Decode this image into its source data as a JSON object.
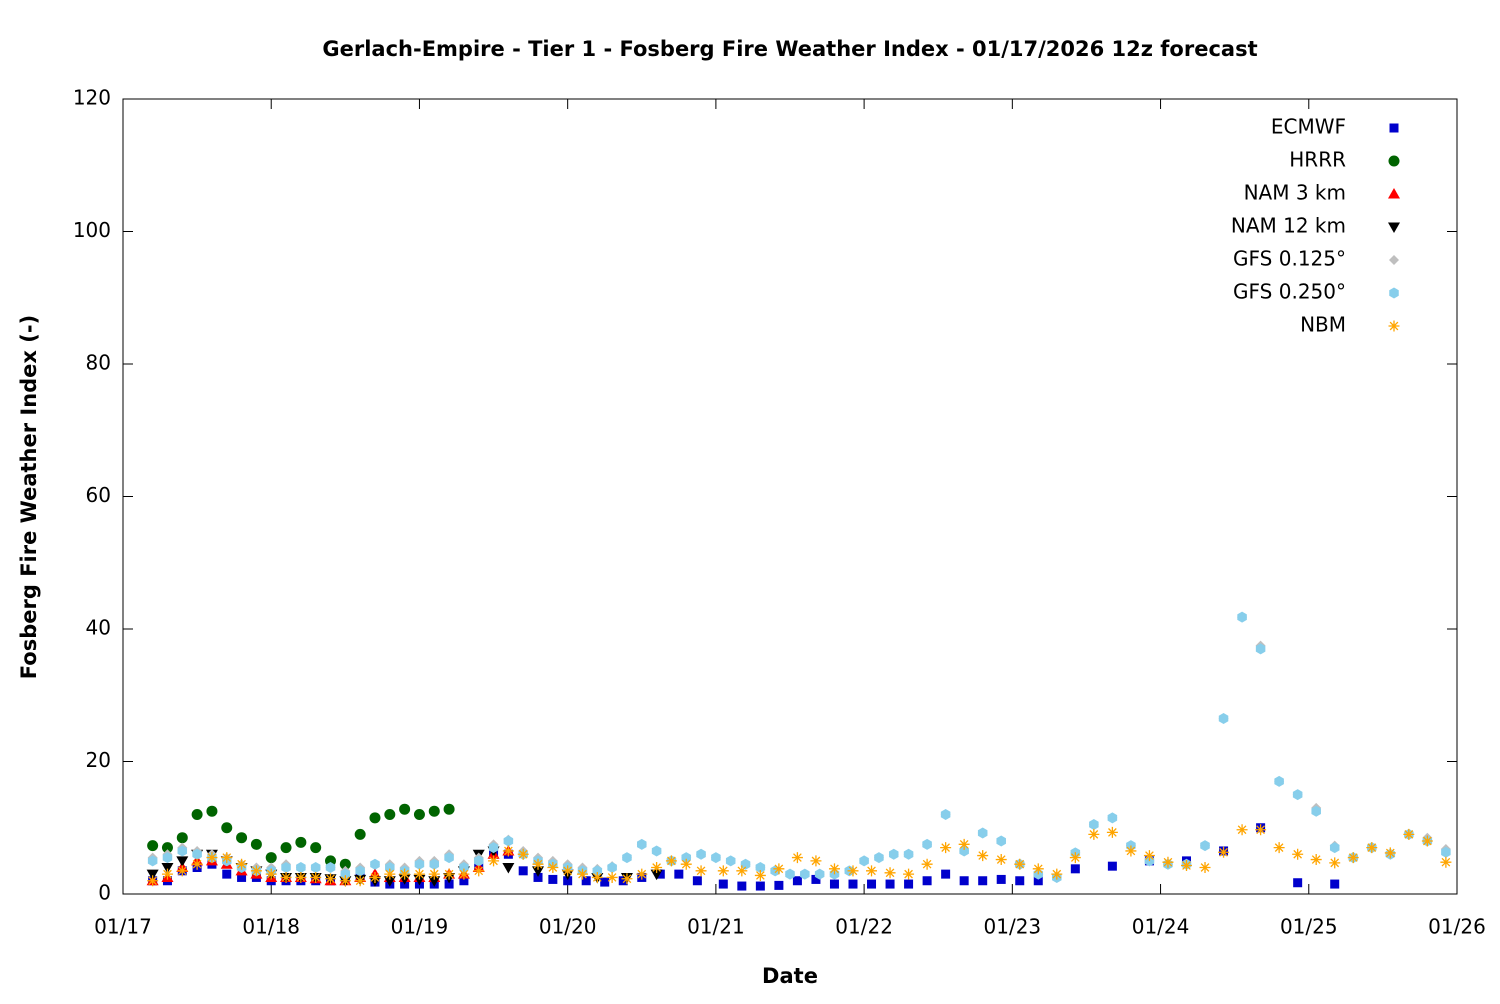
{
  "chart_data": {
    "type": "scatter",
    "title": "Gerlach-Empire - Tier 1 - Fosberg Fire Weather Index - 01/17/2026 12z forecast",
    "x_label": "Date",
    "y_label": "Fosberg Fire Weather Index (-)",
    "xlim": [
      0,
      9
    ],
    "ylim": [
      0,
      120
    ],
    "xticks": [
      {
        "value": 0,
        "label": "01/17"
      },
      {
        "value": 1,
        "label": "01/18"
      },
      {
        "value": 2,
        "label": "01/19"
      },
      {
        "value": 3,
        "label": "01/20"
      },
      {
        "value": 4,
        "label": "01/21"
      },
      {
        "value": 5,
        "label": "01/22"
      },
      {
        "value": 6,
        "label": "01/23"
      },
      {
        "value": 7,
        "label": "01/24"
      },
      {
        "value": 8,
        "label": "01/25"
      },
      {
        "value": 9,
        "label": "01/26"
      }
    ],
    "yticks": [
      0,
      20,
      40,
      60,
      80,
      100,
      120
    ],
    "legend": "top-right",
    "series": [
      {
        "name": "ECMWF",
        "color": "#0000cc",
        "marker": "square",
        "x": [
          0.2,
          0.3,
          0.4,
          0.5,
          0.6,
          0.7,
          0.8,
          0.9,
          1.0,
          1.1,
          1.2,
          1.3,
          1.4,
          1.5,
          1.6,
          1.7,
          1.8,
          1.9,
          2.0,
          2.1,
          2.2,
          2.3,
          2.4,
          2.5,
          2.6,
          2.7,
          2.8,
          2.9,
          3.0,
          3.125,
          3.25,
          3.375,
          3.5,
          3.625,
          3.75,
          3.875,
          4.05,
          4.175,
          4.3,
          4.425,
          4.55,
          4.675,
          4.8,
          4.925,
          5.05,
          5.175,
          5.3,
          5.425,
          5.55,
          5.675,
          5.8,
          5.925,
          6.05,
          6.175,
          6.425,
          6.675,
          6.925,
          7.175,
          7.425,
          7.675,
          7.925,
          8.175
        ],
        "values": [
          2,
          2,
          3.5,
          4,
          4.5,
          3,
          2.5,
          2.5,
          2,
          2,
          2,
          2,
          2,
          2.5,
          2.5,
          1.8,
          1.5,
          1.5,
          1.5,
          1.5,
          1.5,
          2,
          4,
          6,
          6,
          3.5,
          2.5,
          2.2,
          2,
          2,
          1.8,
          2,
          2.5,
          3,
          3,
          2,
          1.5,
          1.2,
          1.2,
          1.3,
          2,
          2.2,
          1.5,
          1.5,
          1.5,
          1.5,
          1.5,
          2,
          3,
          2,
          2,
          2.2,
          2,
          2,
          3.8,
          4.2,
          5,
          5,
          6.5,
          10,
          1.7,
          1.5
        ]
      },
      {
        "name": "HRRR",
        "color": "#006400",
        "marker": "circle",
        "x": [
          0.2,
          0.3,
          0.4,
          0.5,
          0.6,
          0.7,
          0.8,
          0.9,
          1.0,
          1.1,
          1.2,
          1.3,
          1.4,
          1.5,
          1.6,
          1.7,
          1.8,
          1.9,
          2.0,
          2.1,
          2.2
        ],
        "values": [
          7.3,
          7,
          8.5,
          12,
          12.5,
          10,
          8.5,
          7.5,
          5.5,
          7,
          7.8,
          7,
          5,
          4.5,
          9,
          11.5,
          12,
          12.8,
          12,
          12.5,
          12.8
        ]
      },
      {
        "name": "NAM 3 km",
        "color": "#ff0000",
        "marker": "triangle-up",
        "x": [
          0.2,
          0.3,
          0.4,
          0.5,
          0.6,
          0.7,
          0.8,
          0.9,
          1.0,
          1.1,
          1.2,
          1.3,
          1.4,
          1.5,
          1.6,
          1.7,
          1.8,
          1.9,
          2.0,
          2.1,
          2.2,
          2.3,
          2.4,
          2.5,
          2.6
        ],
        "values": [
          2,
          2.5,
          4,
          5,
          5,
          4.5,
          3.5,
          3,
          2.5,
          2.5,
          2.5,
          2.3,
          2,
          2,
          2.5,
          3,
          2.5,
          2.5,
          2.5,
          2.5,
          3,
          3,
          4,
          6,
          6.5
        ]
      },
      {
        "name": "NAM 12 km",
        "color": "#000000",
        "marker": "triangle-down",
        "x": [
          0.2,
          0.3,
          0.4,
          0.5,
          0.6,
          0.7,
          0.8,
          0.9,
          1.0,
          1.1,
          1.2,
          1.3,
          1.4,
          1.5,
          1.6,
          1.7,
          1.8,
          1.9,
          2.0,
          2.1,
          2.2,
          2.3,
          2.4,
          2.5,
          2.6,
          2.8,
          3.0,
          3.2,
          3.4,
          3.6
        ],
        "values": [
          3,
          4,
          5,
          6,
          6,
          5,
          4,
          3.5,
          3,
          2.5,
          2.5,
          2.5,
          2.3,
          2,
          2.2,
          2,
          2,
          2.3,
          2.2,
          2,
          2.5,
          3.5,
          6,
          6.5,
          4,
          3.5,
          3,
          2.5,
          2.5,
          3
        ]
      },
      {
        "name": "GFS 0.125°",
        "color": "#bfbfbf",
        "marker": "diamond",
        "x": [
          0.2,
          0.3,
          0.4,
          0.5,
          0.6,
          0.7,
          0.8,
          0.9,
          1.0,
          1.1,
          1.2,
          1.3,
          1.4,
          1.5,
          1.6,
          1.7,
          1.8,
          1.9,
          2.0,
          2.1,
          2.2,
          2.3,
          2.4,
          2.5,
          2.6,
          2.7,
          2.8,
          2.9,
          3.0,
          3.1,
          3.2,
          3.3,
          3.4,
          3.5,
          3.6,
          3.7,
          3.8,
          3.9,
          4.0,
          4.1,
          4.2,
          4.3,
          4.4,
          4.5,
          4.6,
          4.7,
          4.8,
          4.9,
          5.0,
          5.1,
          5.2,
          5.3,
          5.425,
          5.55,
          5.675,
          5.8,
          5.925,
          6.05,
          6.175,
          6.3,
          6.425,
          6.55,
          6.675,
          6.8,
          6.925,
          7.05,
          7.175,
          7.3,
          7.425,
          7.55,
          7.675,
          7.8,
          7.925,
          8.05,
          8.175,
          8.3,
          8.425,
          8.55,
          8.675,
          8.8,
          8.925
        ],
        "values": [
          5.5,
          6,
          7,
          6.5,
          6,
          5.5,
          4.5,
          4,
          4,
          4.5,
          4,
          4,
          4,
          3.5,
          4,
          4.5,
          4.5,
          4,
          5,
          5,
          6,
          4.5,
          5.5,
          7.5,
          8.2,
          6.5,
          5.5,
          5,
          4.5,
          4,
          3.8,
          4.2,
          5.5,
          7.5,
          6.5,
          5,
          5.5,
          6,
          5.5,
          5,
          4.5,
          4,
          3.5,
          3,
          3,
          3,
          3,
          3.5,
          5,
          5.5,
          6,
          6,
          7.5,
          12,
          6.5,
          9.2,
          8,
          4.5,
          3,
          2.5,
          6.2,
          10.5,
          11.5,
          7.3,
          5,
          4.5,
          4.5,
          7.3,
          26.5,
          41.8,
          37.5,
          17,
          15,
          13,
          7.3,
          5.5,
          7,
          6,
          9,
          8.5,
          6.8
        ]
      },
      {
        "name": "GFS 0.250°",
        "color": "#87ceeb",
        "marker": "hexagon",
        "x": [
          0.2,
          0.3,
          0.4,
          0.5,
          0.6,
          0.7,
          0.8,
          0.9,
          1.0,
          1.1,
          1.2,
          1.3,
          1.4,
          1.5,
          1.6,
          1.7,
          1.8,
          1.9,
          2.0,
          2.1,
          2.2,
          2.3,
          2.4,
          2.5,
          2.6,
          2.7,
          2.8,
          2.9,
          3.0,
          3.1,
          3.2,
          3.3,
          3.4,
          3.5,
          3.6,
          3.7,
          3.8,
          3.9,
          4.0,
          4.1,
          4.2,
          4.3,
          4.4,
          4.5,
          4.6,
          4.7,
          4.8,
          4.9,
          5.0,
          5.1,
          5.2,
          5.3,
          5.425,
          5.55,
          5.675,
          5.8,
          5.925,
          6.05,
          6.175,
          6.3,
          6.425,
          6.55,
          6.675,
          6.8,
          6.925,
          7.05,
          7.175,
          7.3,
          7.425,
          7.55,
          7.675,
          7.8,
          7.925,
          8.05,
          8.175,
          8.3,
          8.425,
          8.55,
          8.675,
          8.8,
          8.925
        ],
        "values": [
          5,
          5.5,
          6.5,
          6,
          5.5,
          5,
          4,
          3.5,
          3.5,
          4,
          4,
          4,
          4,
          3,
          3.5,
          4.5,
          4,
          3.5,
          4.5,
          4.5,
          5.5,
          4,
          5,
          7,
          8,
          6,
          5,
          4.5,
          4,
          3.5,
          3.5,
          4,
          5.5,
          7.5,
          6.5,
          5,
          5.5,
          6,
          5.5,
          5,
          4.5,
          4,
          3.5,
          3,
          3,
          3,
          3,
          3.5,
          5,
          5.5,
          6,
          6,
          7.5,
          12,
          6.5,
          9.2,
          8,
          4.5,
          3,
          2.5,
          6.2,
          10.5,
          11.5,
          7.3,
          5,
          4.5,
          4.5,
          7.3,
          26.5,
          41.8,
          37,
          17,
          15,
          12.5,
          7,
          5.5,
          7,
          6,
          9,
          8,
          6.3
        ]
      },
      {
        "name": "NBM",
        "color": "#ffa500",
        "marker": "asterisk",
        "x": [
          0.2,
          0.3,
          0.4,
          0.5,
          0.6,
          0.7,
          0.8,
          0.9,
          1.0,
          1.1,
          1.2,
          1.3,
          1.4,
          1.5,
          1.6,
          1.7,
          1.8,
          1.9,
          2.0,
          2.1,
          2.2,
          2.3,
          2.4,
          2.5,
          2.6,
          2.7,
          2.8,
          2.9,
          3.0,
          3.1,
          3.2,
          3.3,
          3.4,
          3.5,
          3.6,
          3.7,
          3.8,
          3.9,
          4.05,
          4.175,
          4.3,
          4.425,
          4.55,
          4.675,
          4.8,
          4.925,
          5.05,
          5.175,
          5.3,
          5.425,
          5.55,
          5.675,
          5.8,
          5.925,
          6.05,
          6.175,
          6.3,
          6.425,
          6.55,
          6.675,
          6.8,
          6.925,
          7.05,
          7.175,
          7.3,
          7.425,
          7.55,
          7.675,
          7.8,
          7.925,
          8.05,
          8.175,
          8.3,
          8.425,
          8.55,
          8.675,
          8.8,
          8.925
        ],
        "values": [
          2,
          3,
          3.5,
          4.5,
          5.5,
          5.5,
          4.5,
          3.5,
          3,
          2.5,
          2.5,
          2.5,
          2.3,
          2,
          2,
          2.5,
          3,
          3,
          3,
          3,
          3,
          3,
          3.5,
          5,
          6.5,
          6,
          4.5,
          4,
          3.5,
          3,
          2.5,
          2.5,
          2.3,
          3,
          4,
          5,
          4.5,
          3.5,
          3.5,
          3.5,
          2.8,
          3.8,
          5.5,
          5,
          3.8,
          3.5,
          3.5,
          3.2,
          3,
          4.5,
          7,
          7.5,
          5.8,
          5.2,
          4.5,
          3.8,
          3,
          5.5,
          9,
          9.3,
          6.5,
          5.8,
          4.8,
          4.3,
          4,
          6.3,
          9.7,
          9.7,
          7,
          6,
          5.2,
          4.7,
          5.5,
          7,
          6.2,
          9,
          8,
          4.8
        ]
      }
    ]
  }
}
